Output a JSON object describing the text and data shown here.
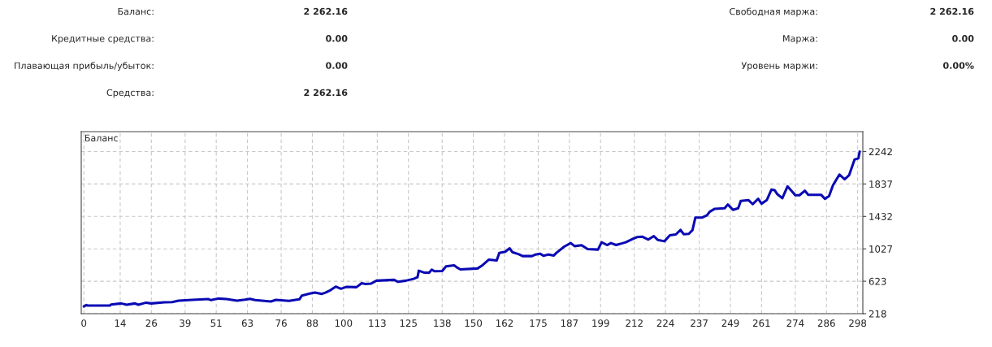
{
  "chart_data": {
    "type": "line",
    "title": "Баланс",
    "annotations": [
      "Баланс:",
      "2 262.16",
      "Кредитные средства:",
      "0.00",
      "Плавающая прибыль/убыток:",
      "0.00",
      "Средства:",
      "2 262.16",
      "Свободная маржа:",
      "2 262.16",
      "Маржа:",
      "0.00",
      "Уровень маржи:",
      "0.00%"
    ],
    "x": [
      0,
      1,
      1.5,
      10,
      10.5,
      14.4,
      16.5,
      19.7,
      21,
      24,
      26,
      31,
      34,
      36.5,
      41.7,
      48,
      49,
      51.7,
      55,
      59,
      62,
      64,
      66,
      72,
      74,
      79,
      83,
      84,
      87,
      89,
      91.7,
      93,
      95,
      97,
      99,
      101,
      105,
      107,
      108.5,
      110.6,
      112.7,
      119.5,
      121,
      124,
      127,
      128.5,
      129,
      131,
      133,
      134,
      135,
      138,
      139.5,
      142.6,
      143.7,
      145,
      151.6,
      153.6,
      156,
      159,
      160,
      162.3,
      164,
      165,
      167.5,
      169,
      172.6,
      174,
      175.7,
      177,
      179,
      181,
      182,
      185,
      187.5,
      189,
      191.7,
      194,
      198,
      199.4,
      201.5,
      203,
      205,
      208.7,
      211,
      213,
      215,
      217.4,
      219.5,
      221,
      223.6,
      225.7,
      228,
      229.8,
      231,
      233,
      234.4,
      235.5,
      238,
      240,
      241,
      243,
      246.8,
      248,
      250,
      252,
      253,
      256,
      257.6,
      259.7,
      261,
      263,
      264.8,
      266,
      267,
      269,
      271,
      272.5,
      274,
      275.6,
      277.7,
      279,
      283.9,
      285.4,
      287,
      288.5,
      291,
      293,
      294.7,
      296.8,
      298.3,
      298.8
    ],
    "series": [
      {
        "color": "#0a0ab4",
        "values": [
          309,
          326,
          319,
          319,
          333,
          346,
          330,
          346,
          330,
          356,
          346,
          360,
          363,
          380,
          390,
          400,
          387,
          407,
          400,
          380,
          393,
          404,
          387,
          370,
          390,
          377,
          397,
          444,
          468,
          481,
          465,
          481,
          512,
          556,
          529,
          552,
          549,
          599,
          589,
          593,
          630,
          640,
          616,
          630,
          653,
          673,
          754,
          731,
          731,
          768,
          748,
          751,
          808,
          822,
          795,
          771,
          782,
          825,
          893,
          882,
          977,
          991,
          1034,
          987,
          960,
          937,
          937,
          957,
          967,
          940,
          957,
          944,
          977,
          1055,
          1099,
          1061,
          1072,
          1024,
          1018,
          1109,
          1075,
          1099,
          1075,
          1109,
          1146,
          1173,
          1180,
          1143,
          1187,
          1139,
          1122,
          1197,
          1207,
          1264,
          1210,
          1214,
          1261,
          1417,
          1417,
          1446,
          1490,
          1527,
          1534,
          1581,
          1514,
          1534,
          1625,
          1635,
          1585,
          1652,
          1591,
          1635,
          1766,
          1760,
          1712,
          1659,
          1807,
          1753,
          1696,
          1696,
          1753,
          1702,
          1702,
          1652,
          1686,
          1820,
          1955,
          1895,
          1945,
          2141,
          2158,
          2242
        ]
      }
    ],
    "xlim": [
      -1,
      300
    ],
    "ylim": [
      218,
      2490
    ],
    "xticks": [
      0,
      14,
      26,
      39,
      51,
      63,
      76,
      88,
      100,
      113,
      125,
      138,
      150,
      162,
      175,
      187,
      199,
      212,
      224,
      237,
      249,
      261,
      274,
      286,
      298
    ],
    "yticks": [
      218,
      623,
      1027,
      1432,
      1837,
      2242
    ],
    "grid": true,
    "line_style": "solid",
    "marker": "none"
  }
}
